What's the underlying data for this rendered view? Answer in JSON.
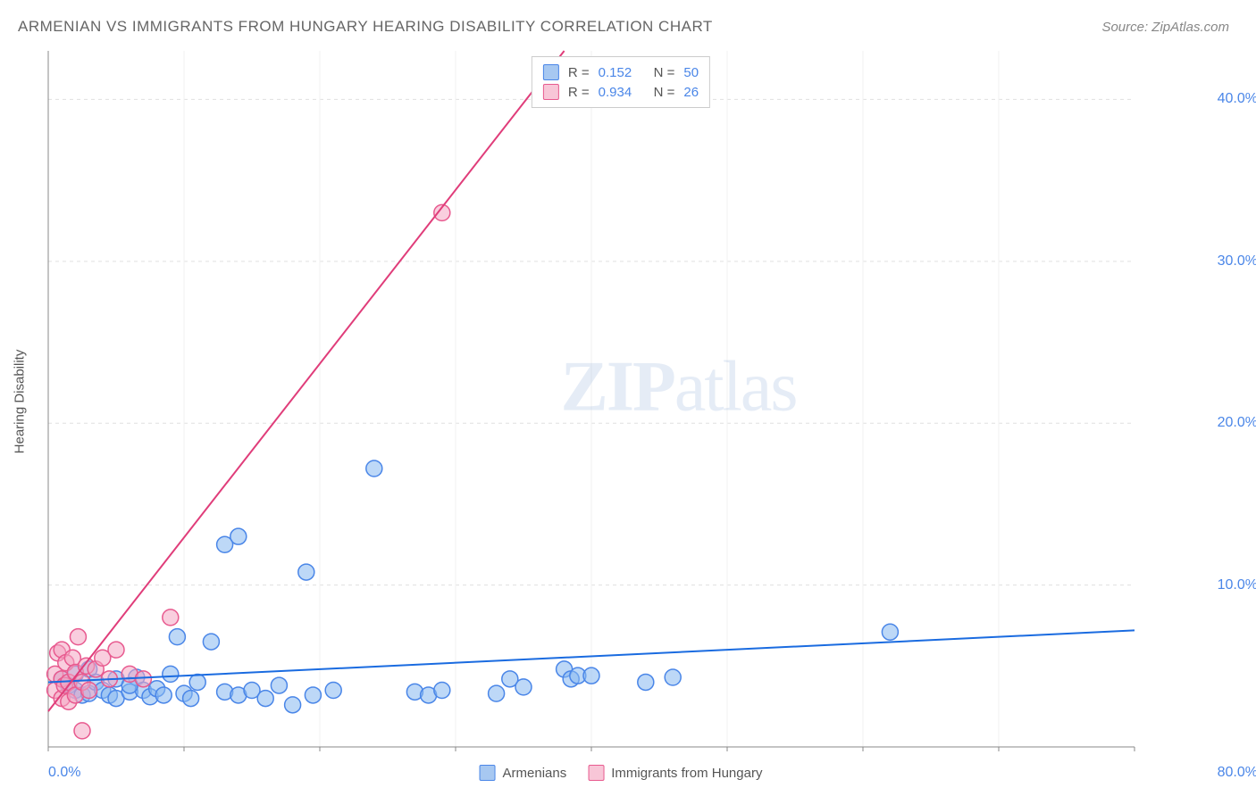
{
  "title": "ARMENIAN VS IMMIGRANTS FROM HUNGARY HEARING DISABILITY CORRELATION CHART",
  "source": "Source: ZipAtlas.com",
  "y_axis_label": "Hearing Disability",
  "watermark_bold": "ZIP",
  "watermark_light": "atlas",
  "chart": {
    "type": "scatter",
    "x_range": [
      0,
      80
    ],
    "y_range": [
      0,
      43
    ],
    "x_ticks": [
      {
        "v": 0,
        "label": "0.0%"
      },
      {
        "v": 80,
        "label": "80.0%"
      }
    ],
    "y_ticks": [
      {
        "v": 10,
        "label": "10.0%"
      },
      {
        "v": 20,
        "label": "20.0%"
      },
      {
        "v": 30,
        "label": "30.0%"
      },
      {
        "v": 40,
        "label": "40.0%"
      }
    ],
    "grid_color": "#e0e0e0",
    "axis_color": "#888888",
    "background_color": "#ffffff",
    "marker_radius": 9,
    "marker_border_width": 1.5,
    "trendline_width": 2,
    "series": [
      {
        "name": "Armenians",
        "fill": "rgba(135,184,240,0.55)",
        "stroke": "#4a86e8",
        "trend": {
          "x1": 0,
          "y1": 4.0,
          "x2": 80,
          "y2": 7.2,
          "color": "#1a6be0"
        },
        "stats": {
          "R": "0.152",
          "N": "50"
        },
        "points": [
          [
            1,
            4.2
          ],
          [
            1.5,
            3.8
          ],
          [
            2,
            3.5
          ],
          [
            2,
            4.5
          ],
          [
            2.5,
            3.2
          ],
          [
            3,
            4.8
          ],
          [
            3,
            3.3
          ],
          [
            3.5,
            4.0
          ],
          [
            4,
            3.5
          ],
          [
            4.5,
            3.2
          ],
          [
            5,
            4.2
          ],
          [
            5,
            3.0
          ],
          [
            6,
            3.4
          ],
          [
            6.5,
            4.3
          ],
          [
            7,
            3.5
          ],
          [
            7.5,
            3.1
          ],
          [
            8,
            3.6
          ],
          [
            8.5,
            3.2
          ],
          [
            9,
            4.5
          ],
          [
            9.5,
            6.8
          ],
          [
            10,
            3.3
          ],
          [
            11,
            4.0
          ],
          [
            12,
            6.5
          ],
          [
            13,
            3.4
          ],
          [
            13,
            12.5
          ],
          [
            14,
            3.2
          ],
          [
            14,
            13.0
          ],
          [
            15,
            3.5
          ],
          [
            16,
            3.0
          ],
          [
            17,
            3.8
          ],
          [
            18,
            2.6
          ],
          [
            19,
            10.8
          ],
          [
            19.5,
            3.2
          ],
          [
            21,
            3.5
          ],
          [
            24,
            17.2
          ],
          [
            27,
            3.4
          ],
          [
            28,
            3.2
          ],
          [
            29,
            3.5
          ],
          [
            33,
            3.3
          ],
          [
            34,
            4.2
          ],
          [
            35,
            3.7
          ],
          [
            38,
            4.8
          ],
          [
            38.5,
            4.2
          ],
          [
            39,
            4.4
          ],
          [
            40,
            4.4
          ],
          [
            44,
            4.0
          ],
          [
            46,
            4.3
          ],
          [
            62,
            7.1
          ],
          [
            10.5,
            3.0
          ],
          [
            6,
            3.8
          ]
        ]
      },
      {
        "name": "Immigrants from Hungary",
        "fill": "rgba(244,165,195,0.55)",
        "stroke": "#e85a8f",
        "trend": {
          "x1": 0,
          "y1": 2.2,
          "x2": 38,
          "y2": 43,
          "color": "#e03d7a"
        },
        "stats": {
          "R": "0.934",
          "N": "26"
        },
        "points": [
          [
            0.5,
            3.5
          ],
          [
            0.5,
            4.5
          ],
          [
            0.7,
            5.8
          ],
          [
            1,
            3.0
          ],
          [
            1,
            4.2
          ],
          [
            1,
            6.0
          ],
          [
            1.2,
            3.8
          ],
          [
            1.3,
            5.2
          ],
          [
            1.5,
            2.8
          ],
          [
            1.5,
            4.0
          ],
          [
            1.8,
            5.5
          ],
          [
            2,
            3.2
          ],
          [
            2,
            4.6
          ],
          [
            2.2,
            6.8
          ],
          [
            2.5,
            4.0
          ],
          [
            2.5,
            1.0
          ],
          [
            2.8,
            5.0
          ],
          [
            3,
            3.5
          ],
          [
            3.5,
            4.8
          ],
          [
            4,
            5.5
          ],
          [
            4.5,
            4.2
          ],
          [
            5,
            6.0
          ],
          [
            6,
            4.5
          ],
          [
            9,
            8.0
          ],
          [
            7,
            4.2
          ],
          [
            29,
            33.0
          ]
        ]
      }
    ]
  },
  "legend_bottom": [
    {
      "label": "Armenians",
      "swatch": "blue"
    },
    {
      "label": "Immigrants from Hungary",
      "swatch": "pink"
    }
  ],
  "stats_labels": {
    "R": "R  =",
    "N": "N  ="
  }
}
